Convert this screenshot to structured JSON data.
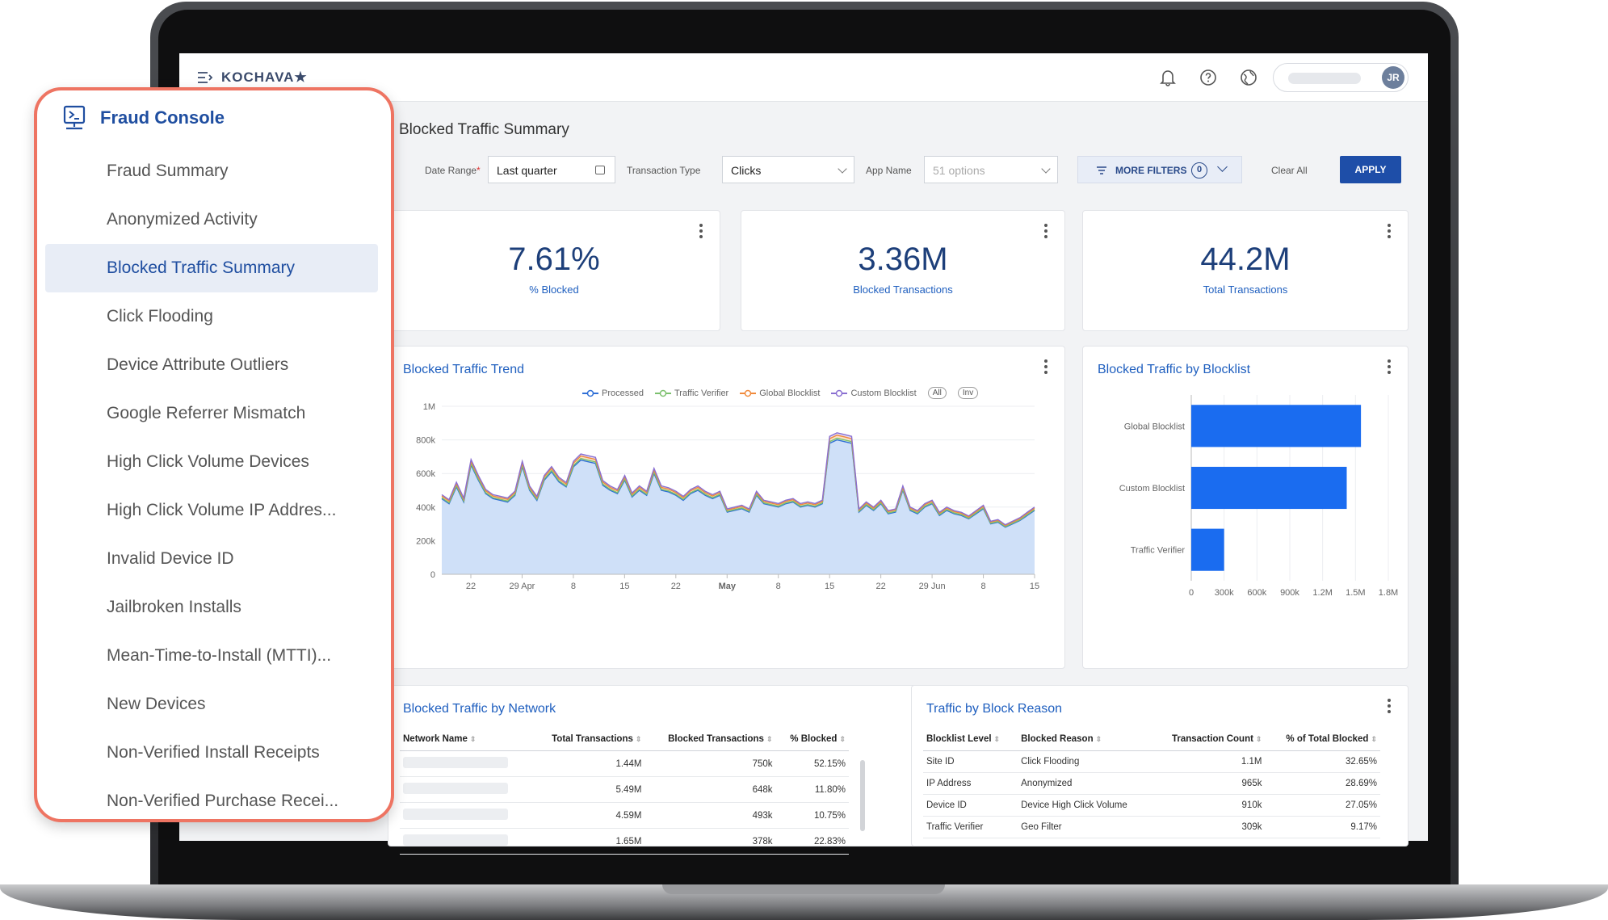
{
  "app": {
    "brand": "KOCHAVA★",
    "user_initials": "JR"
  },
  "page": {
    "title": "Blocked Traffic Summary"
  },
  "filters": {
    "date_range_label": "Date Range",
    "date_range_required": "*",
    "date_range_value": "Last quarter",
    "transaction_type_label": "Transaction Type",
    "transaction_type_value": "Clicks",
    "app_name_label": "App Name",
    "app_name_placeholder": "51 options",
    "more_filters": "MORE FILTERS",
    "more_filters_count": "0",
    "clear_all": "Clear All",
    "apply": "APPLY"
  },
  "kpis": [
    {
      "value": "7.61%",
      "label": "% Blocked"
    },
    {
      "value": "3.36M",
      "label": "Blocked Transactions"
    },
    {
      "value": "44.2M",
      "label": "Total Transactions"
    }
  ],
  "trend": {
    "title": "Blocked Traffic Trend",
    "legend": [
      "Processed",
      "Traffic Verifier",
      "Global Blocklist",
      "Custom Blocklist"
    ],
    "legend_colors": [
      "#2f6fd6",
      "#7cc06e",
      "#f08a3c",
      "#8a6fd1"
    ],
    "toggle_all": "All",
    "toggle_inv": "Inv"
  },
  "blocklist": {
    "title": "Blocked Traffic by Blocklist"
  },
  "network": {
    "title": "Blocked Traffic by Network",
    "columns": [
      "Network Name",
      "Total Transactions",
      "Blocked Transactions",
      "% Blocked"
    ],
    "rows": [
      {
        "total": "1.44M",
        "blocked": "750k",
        "pct": "52.15%"
      },
      {
        "total": "5.49M",
        "blocked": "648k",
        "pct": "11.80%"
      },
      {
        "total": "4.59M",
        "blocked": "493k",
        "pct": "10.75%"
      },
      {
        "total": "1.65M",
        "blocked": "378k",
        "pct": "22.83%"
      }
    ]
  },
  "reason": {
    "title": "Traffic by Block Reason",
    "columns": [
      "Blocklist Level",
      "Blocked Reason",
      "Transaction Count",
      "% of Total Blocked"
    ],
    "rows": [
      {
        "level": "Site ID",
        "reason": "Click Flooding",
        "count": "1.1M",
        "pct": "32.65%"
      },
      {
        "level": "IP Address",
        "reason": "Anonymized",
        "count": "965k",
        "pct": "28.69%"
      },
      {
        "level": "Device ID",
        "reason": "Device High Click Volume",
        "count": "910k",
        "pct": "27.05%"
      },
      {
        "level": "Traffic Verifier",
        "reason": "Geo Filter",
        "count": "309k",
        "pct": "9.17%"
      }
    ]
  },
  "sidepanel": {
    "title": "Fraud Console",
    "items": [
      "Fraud Summary",
      "Anonymized Activity",
      "Blocked Traffic Summary",
      "Click Flooding",
      "Device Attribute Outliers",
      "Google Referrer Mismatch",
      "High Click Volume Devices",
      "High Click Volume IP Addres...",
      "Invalid Device ID",
      "Jailbroken Installs",
      "Mean-Time-to-Install (MTTI)...",
      "New Devices",
      "Non-Verified Install Receipts",
      "Non-Verified Purchase Recei..."
    ],
    "active_index": 2
  },
  "chart_data": [
    {
      "type": "area",
      "title": "Blocked Traffic Trend",
      "x_tick_labels": [
        "22",
        "29 Apr",
        "8",
        "15",
        "22",
        "May",
        "8",
        "15",
        "22",
        "29 Jun",
        "8",
        "15"
      ],
      "y_tick_labels": [
        "0",
        "200k",
        "400k",
        "600k",
        "800k",
        "1M"
      ],
      "ylim": [
        0,
        1000000
      ],
      "series": [
        {
          "name": "Processed",
          "values": [
            450000,
            420000,
            520000,
            430000,
            650000,
            560000,
            480000,
            450000,
            440000,
            430000,
            470000,
            640000,
            500000,
            440000,
            560000,
            610000,
            550000,
            520000,
            640000,
            680000,
            670000,
            660000,
            530000,
            500000,
            480000,
            560000,
            460000,
            500000,
            470000,
            600000,
            500000,
            490000,
            470000,
            440000,
            480000,
            500000,
            470000,
            450000,
            470000,
            370000,
            380000,
            390000,
            370000,
            470000,
            420000,
            410000,
            400000,
            420000,
            430000,
            400000,
            410000,
            400000,
            420000,
            780000,
            800000,
            790000,
            780000,
            370000,
            410000,
            380000,
            420000,
            360000,
            370000,
            500000,
            380000,
            360000,
            400000,
            420000,
            350000,
            380000,
            360000,
            350000,
            330000,
            360000,
            390000,
            300000,
            310000,
            280000,
            300000,
            320000,
            350000,
            380000
          ]
        },
        {
          "name": "Traffic Verifier",
          "values": [
            6000,
            6000,
            7000,
            6000,
            8000,
            7000,
            6000,
            6000,
            6000,
            6000,
            6000,
            8000,
            6000,
            6000,
            7000,
            8000,
            7000,
            6000,
            8000,
            9000,
            9000,
            9000,
            7000,
            6000,
            6000,
            7000,
            6000,
            6000,
            6000,
            8000,
            6000,
            6000,
            6000,
            6000,
            6000,
            6000,
            6000,
            6000,
            6000,
            5000,
            5000,
            5000,
            5000,
            6000,
            5000,
            5000,
            5000,
            5000,
            5000,
            5000,
            5000,
            5000,
            5000,
            10000,
            10000,
            10000,
            10000,
            5000,
            5000,
            5000,
            5000,
            5000,
            5000,
            6000,
            5000,
            5000,
            5000,
            5000,
            5000,
            5000,
            5000,
            5000,
            4000,
            5000,
            5000,
            4000,
            4000,
            4000,
            4000,
            4000,
            5000,
            5000
          ]
        },
        {
          "name": "Global Blocklist",
          "values": [
            10000,
            10000,
            12000,
            10000,
            14000,
            12000,
            11000,
            10000,
            10000,
            10000,
            11000,
            14000,
            11000,
            10000,
            12000,
            13000,
            12000,
            11000,
            14000,
            15000,
            15000,
            15000,
            12000,
            11000,
            11000,
            12000,
            10000,
            11000,
            10000,
            13000,
            11000,
            11000,
            10000,
            10000,
            11000,
            11000,
            10000,
            10000,
            10000,
            8000,
            8000,
            9000,
            8000,
            10000,
            9000,
            9000,
            9000,
            9000,
            9000,
            9000,
            9000,
            9000,
            9000,
            17000,
            18000,
            18000,
            17000,
            8000,
            9000,
            8000,
            9000,
            8000,
            8000,
            11000,
            8000,
            8000,
            9000,
            9000,
            8000,
            8000,
            8000,
            8000,
            7000,
            8000,
            9000,
            7000,
            7000,
            6000,
            7000,
            7000,
            8000,
            8000
          ]
        },
        {
          "name": "Custom Blocklist",
          "values": [
            8000,
            8000,
            9000,
            8000,
            11000,
            9000,
            8000,
            8000,
            8000,
            8000,
            8000,
            11000,
            9000,
            8000,
            9000,
            10000,
            9000,
            9000,
            11000,
            12000,
            12000,
            12000,
            9000,
            9000,
            8000,
            9000,
            8000,
            9000,
            8000,
            10000,
            9000,
            8000,
            8000,
            8000,
            8000,
            9000,
            8000,
            8000,
            8000,
            6000,
            7000,
            7000,
            6000,
            8000,
            7000,
            7000,
            7000,
            7000,
            7000,
            7000,
            7000,
            7000,
            7000,
            14000,
            14000,
            14000,
            14000,
            6000,
            7000,
            7000,
            7000,
            6000,
            6000,
            9000,
            7000,
            6000,
            7000,
            7000,
            6000,
            7000,
            6000,
            6000,
            6000,
            6000,
            7000,
            5000,
            5000,
            5000,
            5000,
            6000,
            6000,
            7000
          ]
        }
      ]
    },
    {
      "type": "bar",
      "orientation": "horizontal",
      "title": "Blocked Traffic by Blocklist",
      "categories": [
        "Global Blocklist",
        "Custom Blocklist",
        "Traffic Verifier"
      ],
      "values": [
        1550000,
        1420000,
        300000
      ],
      "x_tick_labels": [
        "0",
        "300k",
        "600k",
        "900k",
        "1.2M",
        "1.5M",
        "1.8M"
      ],
      "xlim": [
        0,
        1800000
      ],
      "color": "#1a6cf0"
    }
  ]
}
